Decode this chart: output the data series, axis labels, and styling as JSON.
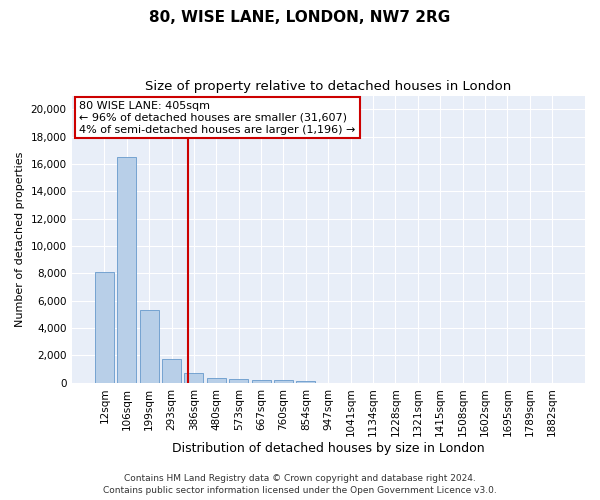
{
  "title1": "80, WISE LANE, LONDON, NW7 2RG",
  "title2": "Size of property relative to detached houses in London",
  "xlabel": "Distribution of detached houses by size in London",
  "ylabel": "Number of detached properties",
  "annotation_line1": "80 WISE LANE: 405sqm",
  "annotation_line2": "← 96% of detached houses are smaller (31,607)",
  "annotation_line3": "4% of semi-detached houses are larger (1,196) →",
  "bar_color": "#b8cfe8",
  "bar_edge_color": "#6699cc",
  "vline_color": "#cc0000",
  "box_edge_color": "#cc0000",
  "background_color": "#e8eef8",
  "footer_text": "Contains HM Land Registry data © Crown copyright and database right 2024.\nContains public sector information licensed under the Open Government Licence v3.0.",
  "categories": [
    "12sqm",
    "106sqm",
    "199sqm",
    "293sqm",
    "386sqm",
    "480sqm",
    "573sqm",
    "667sqm",
    "760sqm",
    "854sqm",
    "947sqm",
    "1041sqm",
    "1134sqm",
    "1228sqm",
    "1321sqm",
    "1415sqm",
    "1508sqm",
    "1602sqm",
    "1695sqm",
    "1789sqm",
    "1882sqm"
  ],
  "values": [
    8100,
    16500,
    5300,
    1750,
    700,
    380,
    290,
    230,
    200,
    150,
    0,
    0,
    0,
    0,
    0,
    0,
    0,
    0,
    0,
    0,
    0
  ],
  "ylim": [
    0,
    21000
  ],
  "yticks": [
    0,
    2000,
    4000,
    6000,
    8000,
    10000,
    12000,
    14000,
    16000,
    18000,
    20000
  ],
  "vline_x": 3.75,
  "title1_fontsize": 11,
  "title2_fontsize": 9.5,
  "xlabel_fontsize": 9,
  "ylabel_fontsize": 8,
  "tick_fontsize": 7.5,
  "annotation_fontsize": 8,
  "footer_fontsize": 6.5
}
